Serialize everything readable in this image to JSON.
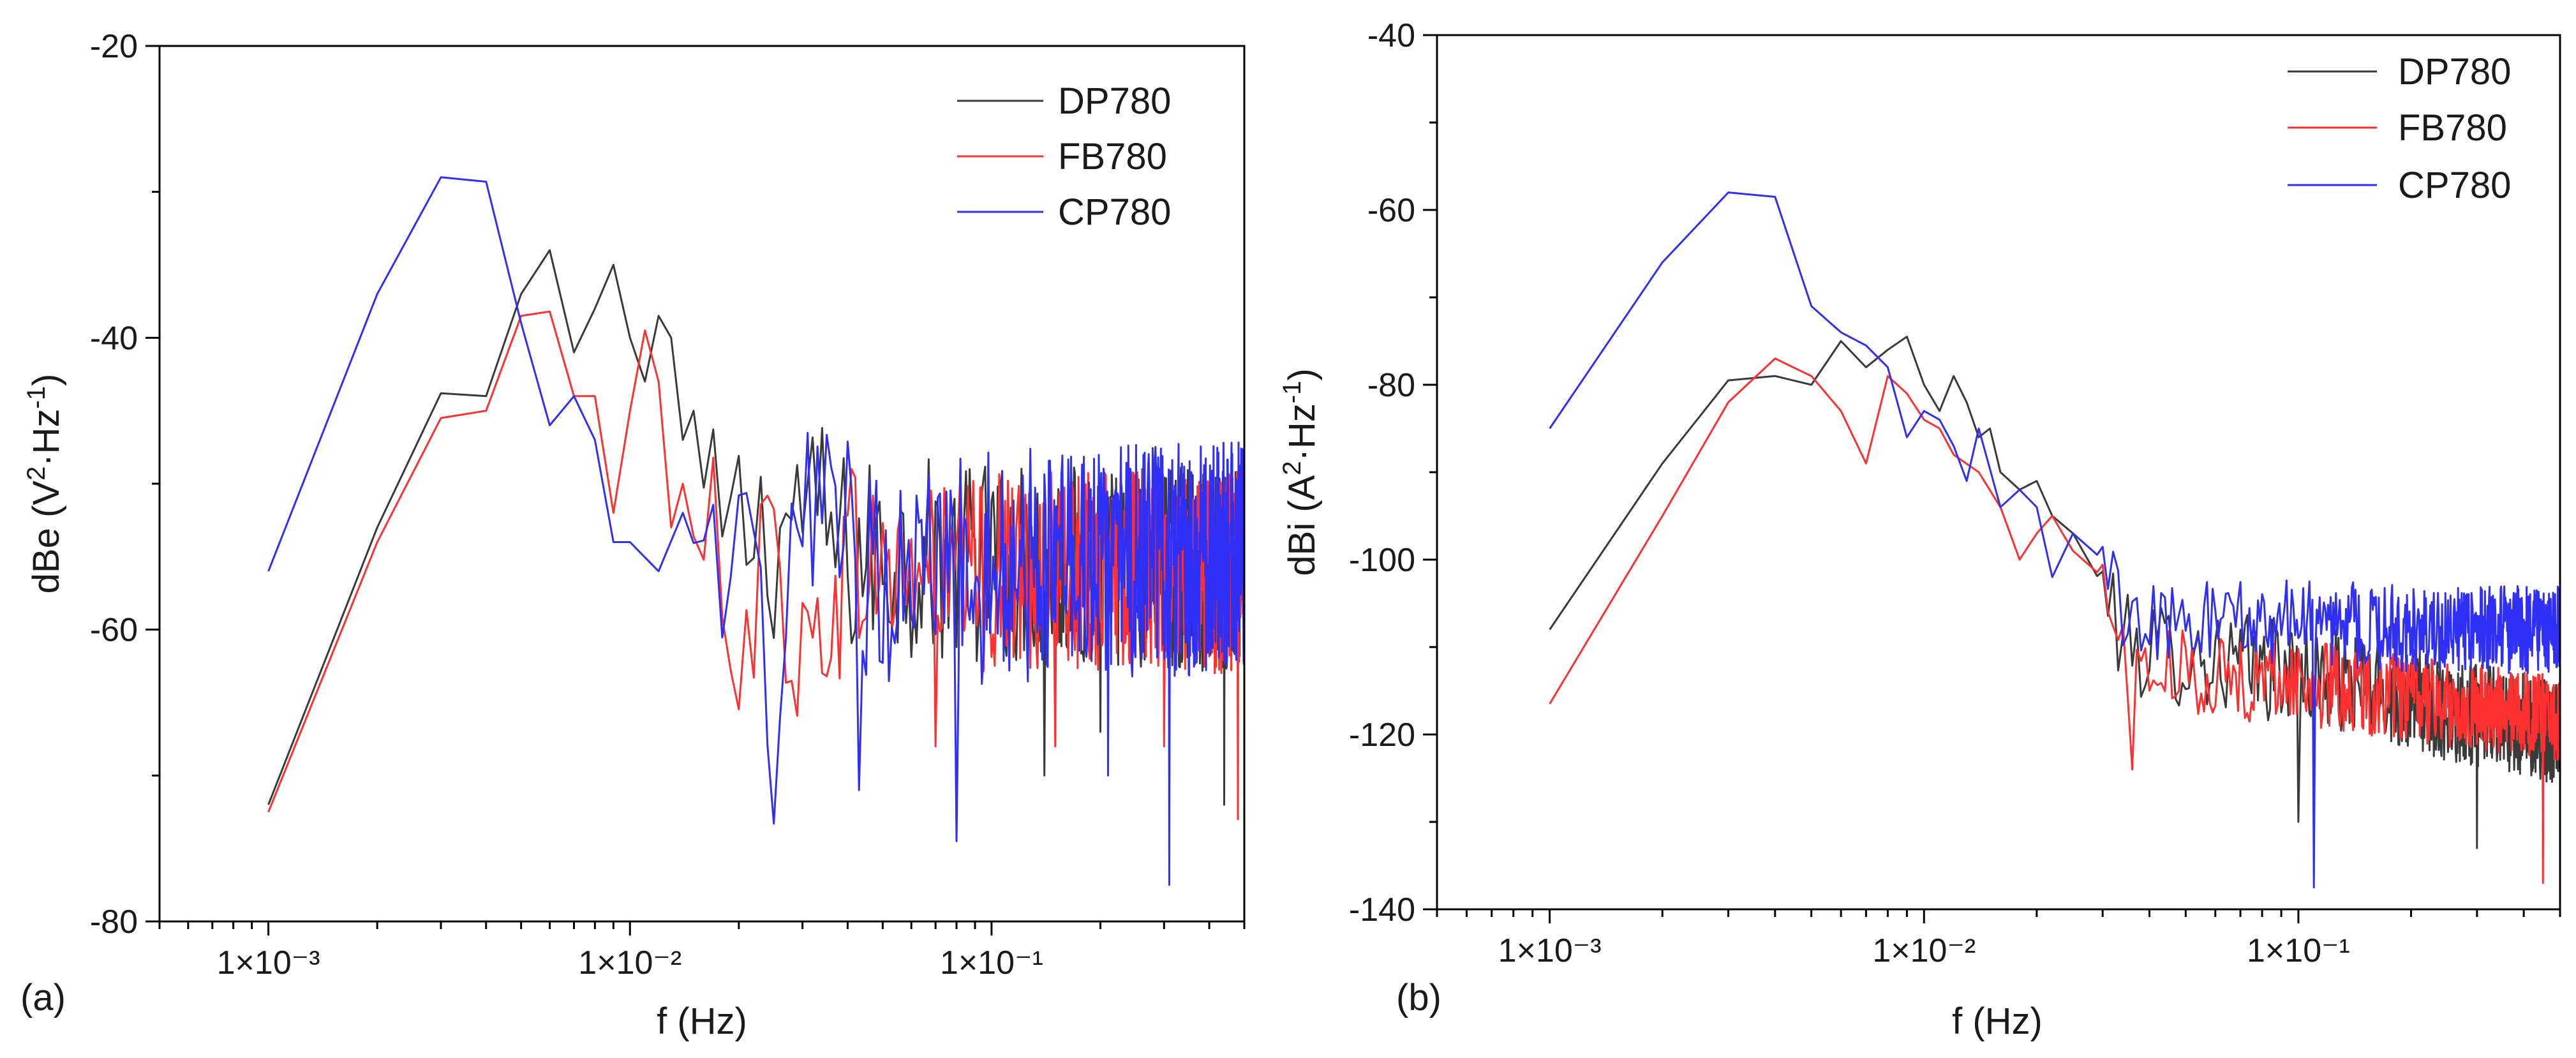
{
  "chart_data": [
    {
      "panel": "(a)",
      "type": "line",
      "xscale": "log",
      "xlabel": "f (Hz)",
      "ylabel_base": "dBe (V",
      "ylabel_sup1": "2",
      "ylabel_mid": "·Hz",
      "ylabel_sup2": "-1",
      "ylabel_end": ")",
      "xlim": [
        0.0005,
        0.5
      ],
      "ylim": [
        -80,
        -20
      ],
      "yticks": [
        -80,
        -60,
        -40,
        -20
      ],
      "ytick_labels": [
        "-80",
        "-60",
        "-40",
        "-20"
      ],
      "xticks": [
        0.001,
        0.01,
        0.1
      ],
      "xtick_labels": [
        "1×10⁻³",
        "1×10⁻²",
        "1×10⁻¹"
      ],
      "legend_position": "top-right",
      "series": [
        {
          "name": "DP780",
          "color": "#3a3a3a",
          "anchors": [
            [
              0.001,
              -72
            ],
            [
              0.002,
              -53
            ],
            [
              0.003,
              -43.8
            ],
            [
              0.004,
              -44
            ],
            [
              0.005,
              -37
            ],
            [
              0.006,
              -34
            ],
            [
              0.007,
              -41
            ],
            [
              0.008,
              -38
            ],
            [
              0.009,
              -35
            ],
            [
              0.01,
              -40
            ],
            [
              0.011,
              -43
            ],
            [
              0.012,
              -38.5
            ],
            [
              0.013,
              -40
            ],
            [
              0.014,
              -47
            ],
            [
              0.015,
              -45
            ],
            [
              0.016,
              -52
            ],
            [
              0.018,
              -54
            ],
            [
              0.02,
              -53
            ],
            [
              0.025,
              -54
            ],
            [
              0.03,
              -51
            ],
            [
              0.04,
              -55
            ],
            [
              0.05,
              -55
            ],
            [
              0.5,
              -56
            ]
          ],
          "noise_start": 0.016,
          "noise_amp": 7,
          "dips": [
            [
              0.042,
              -60
            ],
            [
              0.14,
              -70
            ],
            [
              0.2,
              -67
            ],
            [
              0.44,
              -72
            ]
          ]
        },
        {
          "name": "FB780",
          "color": "#ff3030",
          "anchors": [
            [
              0.001,
              -72.5
            ],
            [
              0.002,
              -54
            ],
            [
              0.003,
              -45.5
            ],
            [
              0.004,
              -45
            ],
            [
              0.005,
              -38.5
            ],
            [
              0.006,
              -38.2
            ],
            [
              0.007,
              -44
            ],
            [
              0.008,
              -44
            ],
            [
              0.009,
              -52
            ],
            [
              0.01,
              -45
            ],
            [
              0.011,
              -39.5
            ],
            [
              0.012,
              -43
            ],
            [
              0.013,
              -53
            ],
            [
              0.014,
              -50
            ],
            [
              0.016,
              -57
            ],
            [
              0.018,
              -53
            ],
            [
              0.02,
              -61
            ],
            [
              0.025,
              -54
            ],
            [
              0.03,
              -63
            ],
            [
              0.04,
              -55
            ],
            [
              0.05,
              -56
            ],
            [
              0.5,
              -56
            ]
          ],
          "noise_start": 0.016,
          "noise_amp": 7,
          "dips": [
            [
              0.07,
              -68
            ],
            [
              0.15,
              -68
            ],
            [
              0.3,
              -68
            ],
            [
              0.48,
              -73
            ]
          ]
        },
        {
          "name": "CP780",
          "color": "#2f2ff5",
          "anchors": [
            [
              0.001,
              -56
            ],
            [
              0.002,
              -37
            ],
            [
              0.003,
              -29
            ],
            [
              0.004,
              -29.3
            ],
            [
              0.005,
              -39
            ],
            [
              0.006,
              -46
            ],
            [
              0.007,
              -44
            ],
            [
              0.008,
              -47
            ],
            [
              0.009,
              -54
            ],
            [
              0.01,
              -54
            ],
            [
              0.012,
              -56
            ],
            [
              0.014,
              -52
            ],
            [
              0.016,
              -56
            ],
            [
              0.018,
              -62
            ],
            [
              0.02,
              -51
            ],
            [
              0.025,
              -70
            ],
            [
              0.03,
              -52
            ],
            [
              0.04,
              -55
            ],
            [
              0.05,
              -56
            ],
            [
              0.5,
              -55
            ]
          ],
          "noise_start": 0.016,
          "noise_amp": 8,
          "dips": [
            [
              0.043,
              -71
            ],
            [
              0.08,
              -74.5
            ],
            [
              0.31,
              -77.5
            ],
            [
              0.21,
              -70
            ]
          ]
        }
      ]
    },
    {
      "panel": "(b)",
      "type": "line",
      "xscale": "log",
      "xlabel": "f (Hz)",
      "ylabel_base": "dBi (A",
      "ylabel_sup1": "2",
      "ylabel_mid": "·Hz",
      "ylabel_sup2": "-1",
      "ylabel_end": ")",
      "xlim": [
        0.0005,
        0.5
      ],
      "ylim": [
        -140,
        -40
      ],
      "yticks": [
        -140,
        -120,
        -100,
        -80,
        -60,
        -40
      ],
      "ytick_labels": [
        "-140",
        "-120",
        "-100",
        "-80",
        "-60",
        "-40"
      ],
      "xticks": [
        0.001,
        0.01,
        0.1
      ],
      "xtick_labels": [
        "1×10⁻³",
        "1×10⁻²",
        "1×10⁻¹"
      ],
      "legend_position": "top-right",
      "series": [
        {
          "name": "DP780",
          "color": "#3a3a3a",
          "anchors": [
            [
              0.001,
              -108
            ],
            [
              0.002,
              -89
            ],
            [
              0.003,
              -79.5
            ],
            [
              0.004,
              -79
            ],
            [
              0.005,
              -80
            ],
            [
              0.006,
              -75
            ],
            [
              0.007,
              -78
            ],
            [
              0.008,
              -76
            ],
            [
              0.009,
              -74.5
            ],
            [
              0.01,
              -80
            ],
            [
              0.011,
              -83
            ],
            [
              0.012,
              -79
            ],
            [
              0.013,
              -82
            ],
            [
              0.014,
              -86
            ],
            [
              0.015,
              -85
            ],
            [
              0.016,
              -90
            ],
            [
              0.018,
              -92
            ],
            [
              0.02,
              -91
            ],
            [
              0.022,
              -95
            ],
            [
              0.025,
              -97
            ],
            [
              0.03,
              -103
            ],
            [
              0.035,
              -110
            ],
            [
              0.05,
              -111
            ],
            [
              0.1,
              -113
            ],
            [
              0.2,
              -116
            ],
            [
              0.5,
              -120
            ]
          ],
          "noise_start": 0.03,
          "noise_amp": 6,
          "dips": [
            [
              0.1,
              -130
            ],
            [
              0.3,
              -133
            ],
            [
              0.45,
              -134
            ]
          ]
        },
        {
          "name": "FB780",
          "color": "#ff3030",
          "anchors": [
            [
              0.001,
              -116.5
            ],
            [
              0.002,
              -95
            ],
            [
              0.003,
              -82
            ],
            [
              0.004,
              -77
            ],
            [
              0.005,
              -79
            ],
            [
              0.006,
              -83
            ],
            [
              0.007,
              -89
            ],
            [
              0.008,
              -79
            ],
            [
              0.009,
              -81
            ],
            [
              0.01,
              -84
            ],
            [
              0.011,
              -85
            ],
            [
              0.012,
              -88
            ],
            [
              0.014,
              -90
            ],
            [
              0.016,
              -94
            ],
            [
              0.018,
              -100
            ],
            [
              0.02,
              -97
            ],
            [
              0.022,
              -95
            ],
            [
              0.025,
              -99
            ],
            [
              0.03,
              -102
            ],
            [
              0.035,
              -113
            ],
            [
              0.05,
              -113
            ],
            [
              0.1,
              -114
            ],
            [
              0.2,
              -116
            ],
            [
              0.5,
              -118
            ]
          ],
          "noise_start": 0.03,
          "noise_amp": 5,
          "dips": [
            [
              0.036,
              -124
            ],
            [
              0.45,
              -137
            ]
          ]
        },
        {
          "name": "CP780",
          "color": "#2f2ff5",
          "anchors": [
            [
              0.001,
              -85
            ],
            [
              0.002,
              -66
            ],
            [
              0.003,
              -58
            ],
            [
              0.004,
              -58.5
            ],
            [
              0.005,
              -71
            ],
            [
              0.006,
              -74
            ],
            [
              0.007,
              -75.5
            ],
            [
              0.008,
              -78
            ],
            [
              0.009,
              -86
            ],
            [
              0.01,
              -83
            ],
            [
              0.011,
              -84
            ],
            [
              0.012,
              -87
            ],
            [
              0.013,
              -91
            ],
            [
              0.014,
              -85
            ],
            [
              0.016,
              -94
            ],
            [
              0.018,
              -92
            ],
            [
              0.02,
              -94
            ],
            [
              0.022,
              -102
            ],
            [
              0.025,
              -97
            ],
            [
              0.03,
              -100
            ],
            [
              0.035,
              -108
            ],
            [
              0.05,
              -107
            ],
            [
              0.1,
              -107
            ],
            [
              0.2,
              -108
            ],
            [
              0.5,
              -108
            ]
          ],
          "noise_start": 0.03,
          "noise_amp": 5,
          "dips": [
            [
              0.11,
              -137.5
            ]
          ]
        }
      ]
    }
  ]
}
